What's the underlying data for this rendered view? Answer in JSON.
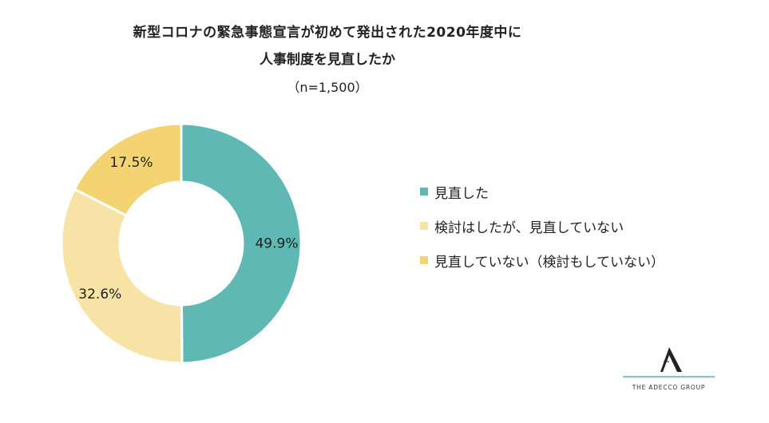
{
  "title": {
    "line1": "新型コロナの緊急事態宣言が初めて発出された2020年度中に",
    "line2": "人事制度を見直したか",
    "sample": "（n=1,500）"
  },
  "chart_data": {
    "type": "pie",
    "donut": true,
    "series": [
      {
        "name": "見直した",
        "value": 49.9,
        "label": "49.9%",
        "color": "#5fb8b3"
      },
      {
        "name": "検討はしたが、見直していない",
        "value": 32.6,
        "label": "32.6%",
        "color": "#f8e3a7"
      },
      {
        "name": "見直していない（検討もしていない）",
        "value": 17.5,
        "label": "17.5%",
        "color": "#f3d372"
      }
    ],
    "legend_position": "right"
  },
  "logo": {
    "text": "THE ADECCO GROUP"
  }
}
